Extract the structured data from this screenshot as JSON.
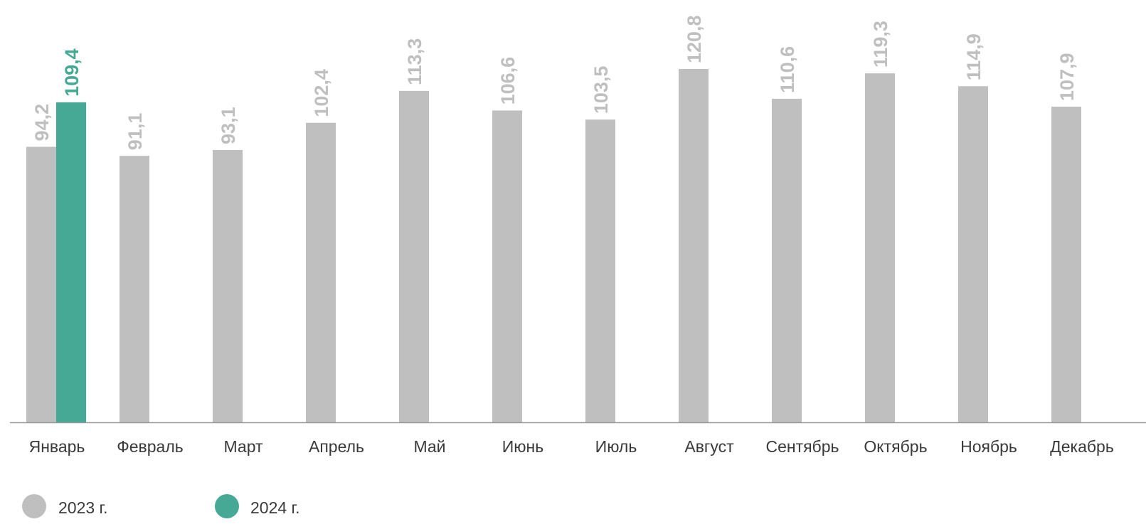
{
  "chart_data": {
    "type": "bar",
    "categories": [
      "Январь",
      "Февраль",
      "Март",
      "Апрель",
      "Май",
      "Июнь",
      "Июль",
      "Август",
      "Сентябрь",
      "Октябрь",
      "Ноябрь",
      "Декабрь"
    ],
    "series": [
      {
        "name": "2023 г.",
        "color": "#bfbfbf",
        "values": [
          94.2,
          91.1,
          93.1,
          102.4,
          113.3,
          106.6,
          103.5,
          120.8,
          110.6,
          119.3,
          114.9,
          107.9
        ],
        "labels": [
          "94,2",
          "91,1",
          "93,1",
          "102,4",
          "113,3",
          "106,6",
          "103,5",
          "120,8",
          "110,6",
          "119,3",
          "114,9",
          "107,9"
        ]
      },
      {
        "name": "2024 г.",
        "color": "#45a996",
        "values": [
          109.4,
          null,
          null,
          null,
          null,
          null,
          null,
          null,
          null,
          null,
          null,
          null
        ],
        "labels": [
          "109,4",
          "",
          "",
          "",
          "",
          "",
          "",
          "",
          "",
          "",
          "",
          ""
        ]
      }
    ],
    "ylim": [
      0,
      126
    ],
    "grid": false,
    "legend": "bottom-left",
    "axis_color": "#999999"
  }
}
